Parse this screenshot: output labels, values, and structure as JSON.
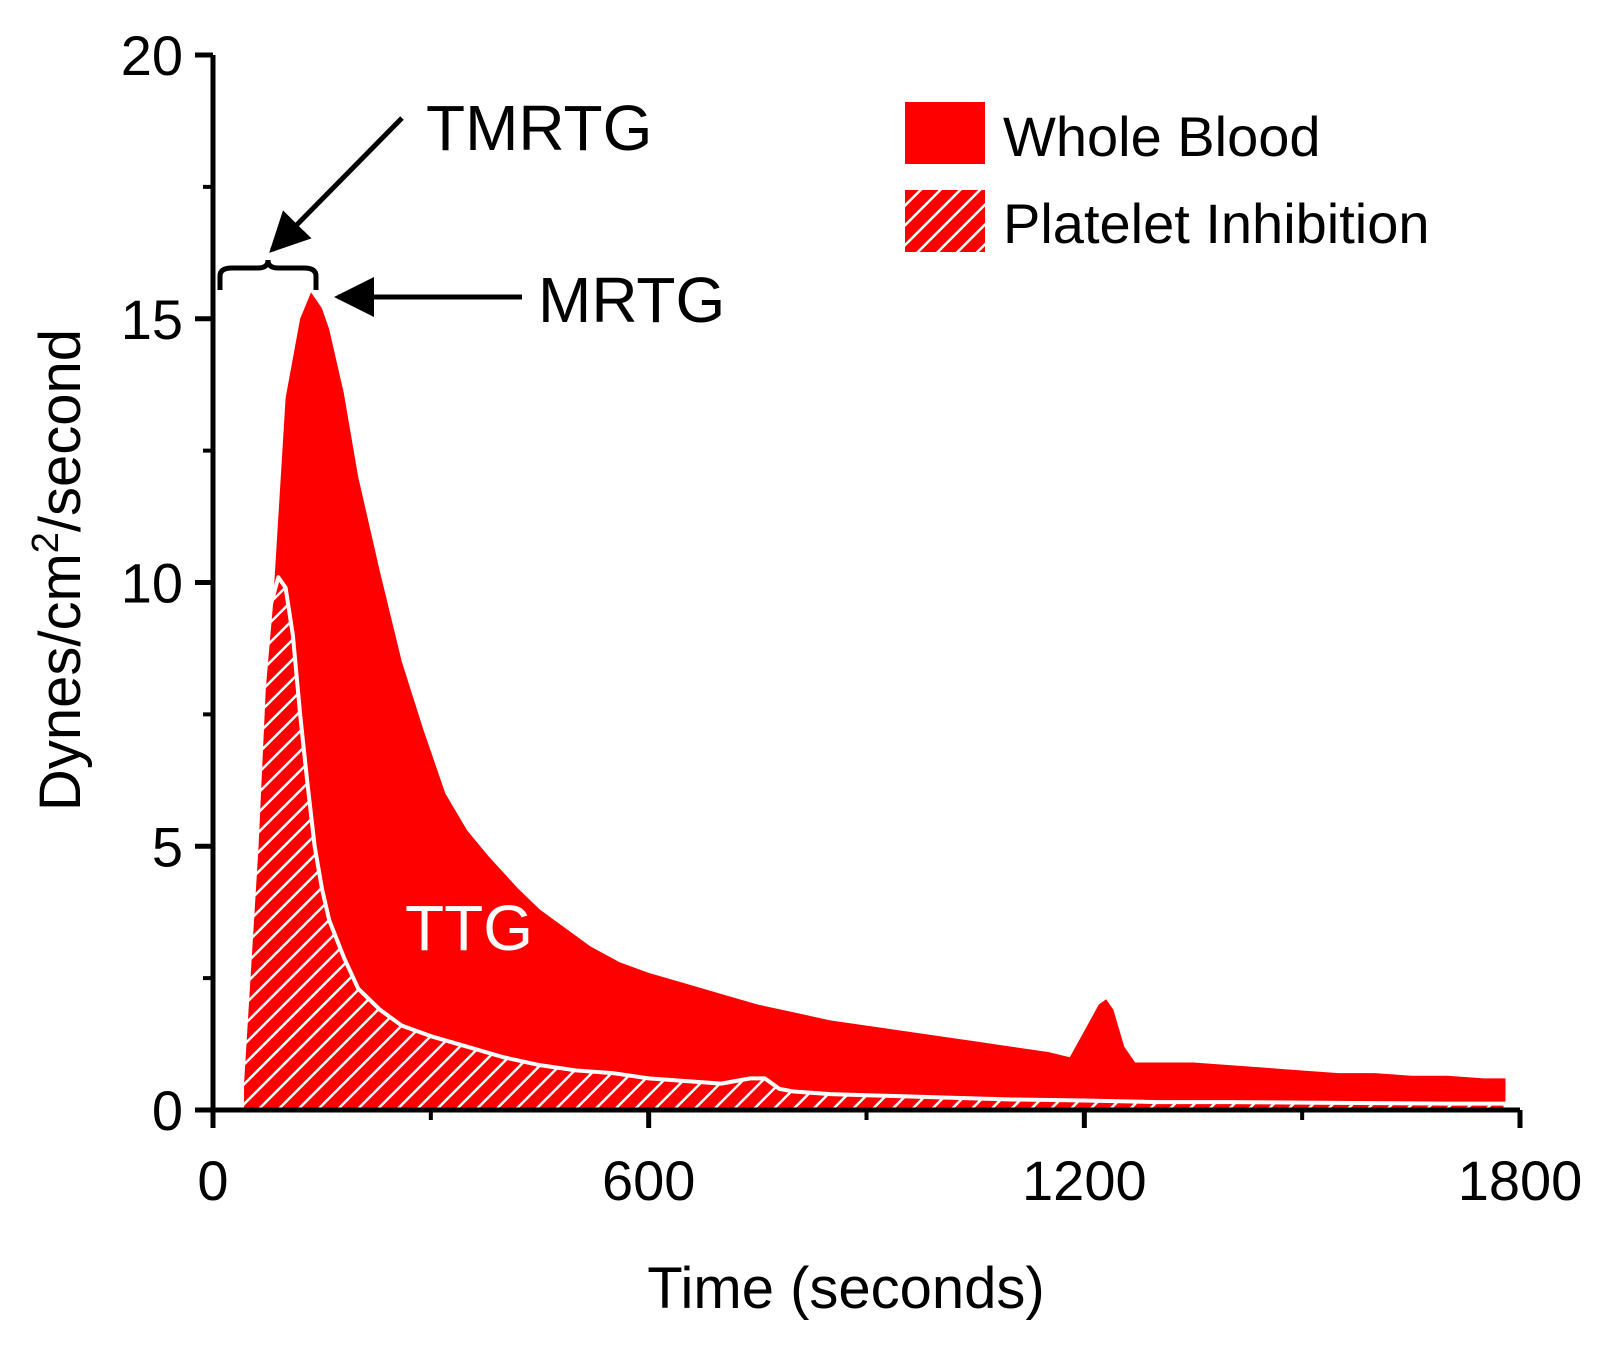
{
  "chart_data": {
    "type": "area",
    "xlabel": "Time (seconds)",
    "ylabel_parts": {
      "before_sup": "Dynes/cm",
      "sup": "2",
      "after_sup": "/second"
    },
    "xlim": [
      0,
      1800
    ],
    "ylim": [
      0,
      20
    ],
    "x_ticks": [
      0,
      600,
      1200,
      1800
    ],
    "x_tick_labels": [
      "0",
      "600",
      "1200",
      "1800"
    ],
    "x_minor_ticks": [
      300,
      900,
      1500
    ],
    "y_ticks": [
      0,
      5,
      10,
      15,
      20
    ],
    "y_tick_labels": [
      "0",
      "5",
      "10",
      "15",
      "20"
    ],
    "y_minor_ticks": [
      2.5,
      7.5,
      12.5,
      17.5
    ],
    "grid": false,
    "legend_position": "top-right",
    "series": [
      {
        "name": "Whole Blood",
        "style": "solid",
        "color": "#ff0000",
        "x": [
          40,
          60,
          80,
          100,
          120,
          135,
          150,
          160,
          180,
          200,
          230,
          260,
          290,
          320,
          350,
          380,
          420,
          450,
          480,
          520,
          560,
          600,
          650,
          700,
          750,
          800,
          850,
          900,
          950,
          1000,
          1050,
          1100,
          1150,
          1180,
          1200,
          1220,
          1230,
          1240,
          1255,
          1270,
          1300,
          1350,
          1400,
          1450,
          1500,
          1550,
          1600,
          1650,
          1700,
          1750,
          1780
        ],
        "y": [
          0.5,
          3.5,
          9.0,
          13.5,
          15.0,
          15.5,
          15.2,
          14.8,
          13.6,
          12.0,
          10.2,
          8.5,
          7.2,
          6.0,
          5.3,
          4.8,
          4.2,
          3.8,
          3.5,
          3.1,
          2.8,
          2.6,
          2.4,
          2.2,
          2.0,
          1.85,
          1.7,
          1.6,
          1.5,
          1.4,
          1.3,
          1.2,
          1.1,
          1.0,
          1.5,
          2.0,
          2.1,
          1.9,
          1.2,
          0.9,
          0.9,
          0.9,
          0.85,
          0.8,
          0.75,
          0.7,
          0.7,
          0.65,
          0.65,
          0.6,
          0.6
        ]
      },
      {
        "name": "Platelet Inhibition",
        "style": "hatched",
        "color": "#ff0000",
        "x": [
          40,
          60,
          70,
          80,
          90,
          100,
          110,
          120,
          130,
          140,
          150,
          160,
          180,
          200,
          230,
          260,
          300,
          350,
          400,
          450,
          500,
          550,
          600,
          650,
          700,
          720,
          740,
          760,
          780,
          800,
          850,
          900,
          950,
          1000,
          1100,
          1200,
          1300,
          1400,
          1500,
          1600,
          1700,
          1780
        ],
        "y": [
          0.5,
          5.0,
          8.0,
          9.6,
          10.1,
          9.9,
          9.0,
          7.5,
          6.2,
          5.0,
          4.2,
          3.6,
          2.9,
          2.3,
          1.9,
          1.6,
          1.4,
          1.2,
          1.0,
          0.85,
          0.75,
          0.7,
          0.6,
          0.55,
          0.5,
          0.55,
          0.6,
          0.6,
          0.4,
          0.35,
          0.3,
          0.28,
          0.26,
          0.24,
          0.2,
          0.18,
          0.15,
          0.15,
          0.14,
          0.13,
          0.12,
          0.12
        ]
      }
    ],
    "annotations": [
      {
        "text": "TMRTG",
        "points_to": "time to maximum rate (bracket from 0 to 135 s)"
      },
      {
        "text": "MRTG",
        "points_to": "peak of Whole Blood curve"
      },
      {
        "text": "TTG",
        "points_to": "area under Whole Blood curve"
      }
    ]
  }
}
